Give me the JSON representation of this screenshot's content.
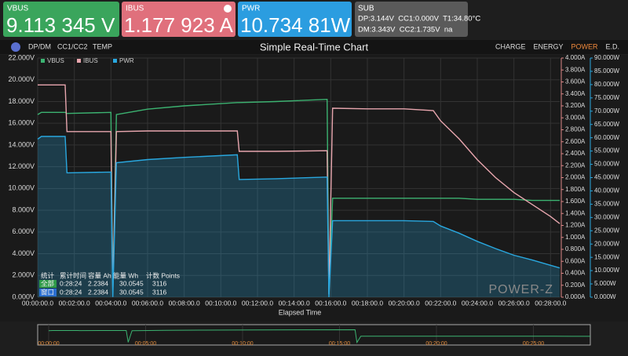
{
  "header": {
    "panels": [
      {
        "label": "VBUS",
        "value": "9.113 345 V"
      },
      {
        "label": "IBUS",
        "value": "1.177 923 A"
      },
      {
        "label": "PWR",
        "value": "10.734 81W"
      }
    ],
    "sub": {
      "label": "SUB",
      "lines": [
        "DP:3.144V  CC1:0.000V  T1:34.80°C",
        "DM:3.343V  CC2:1.735V  na"
      ]
    }
  },
  "toolbar": {
    "left_tabs": [
      "DP/DM",
      "CC1/CC2",
      "TEMP"
    ],
    "right_tabs": [
      "CHARGE",
      "ENERGY",
      "POWER",
      "E.D."
    ],
    "active_tab": "POWER"
  },
  "stats": {
    "headers": [
      "统计",
      "累计时间",
      "容量 Ah",
      "能量 Wh",
      "计数 Points"
    ],
    "rows": [
      [
        "全部",
        "0:28:24",
        "2.2384",
        "30.0545",
        "3116"
      ],
      [
        "窗口",
        "0:28:24",
        "2.2384",
        "30.0545",
        "3116"
      ]
    ]
  },
  "watermark": "POWER-Z",
  "chart_data": {
    "type": "line",
    "title": "Simple Real-Time Chart",
    "xlabel": "Elapsed Time",
    "x": [
      0,
      0.2,
      1.5,
      1.6,
      4.0,
      4.1,
      4.3,
      6,
      8,
      10.9,
      11.0,
      13,
      15.8,
      15.9,
      16.1,
      18,
      20,
      21.6,
      22,
      23,
      24,
      25,
      26,
      27,
      28,
      28.5
    ],
    "series": [
      {
        "name": "VBUS",
        "color": "#3cb371",
        "axis": "y",
        "values": [
          16.8,
          17.0,
          17.0,
          16.9,
          17.0,
          0.5,
          16.8,
          17.3,
          17.6,
          17.9,
          17.9,
          18.0,
          18.2,
          0.3,
          9.1,
          9.1,
          9.1,
          9.1,
          9.1,
          9.1,
          9.0,
          9.0,
          9.0,
          8.9,
          8.9,
          8.9
        ]
      },
      {
        "name": "IBUS",
        "color": "#e8a6ae",
        "axis": "y2",
        "values": [
          3.55,
          3.55,
          3.55,
          2.77,
          2.77,
          0.1,
          2.77,
          2.78,
          2.78,
          2.78,
          2.44,
          2.44,
          2.45,
          0.05,
          3.16,
          3.15,
          3.15,
          3.12,
          2.95,
          2.65,
          2.3,
          2.0,
          1.75,
          1.55,
          1.35,
          1.23
        ]
      },
      {
        "name": "PWR",
        "color": "#29a8e0",
        "axis": "y3",
        "values": [
          59.5,
          60.5,
          60.5,
          46.8,
          47.1,
          0.1,
          50.6,
          51.8,
          52.6,
          53.6,
          44.3,
          44.6,
          45.2,
          0.0,
          28.8,
          28.8,
          28.8,
          28.5,
          26.8,
          24.1,
          21.0,
          18.3,
          15.8,
          14.0,
          12.0,
          11.0
        ]
      }
    ],
    "xlim": [
      0,
      28.5
    ],
    "xticks": [
      {
        "value": 0,
        "label": "00:00:00.0"
      },
      {
        "value": 2,
        "label": "00:02:00.0"
      },
      {
        "value": 4,
        "label": "00:04:00.0"
      },
      {
        "value": 6,
        "label": "00:06:00.0"
      },
      {
        "value": 8,
        "label": "00:08:00.0"
      },
      {
        "value": 10,
        "label": "00:10:00.0"
      },
      {
        "value": 12,
        "label": "00:12:00.0"
      },
      {
        "value": 14,
        "label": "00:14:00.0"
      },
      {
        "value": 16,
        "label": "00:16:00.0"
      },
      {
        "value": 18,
        "label": "00:18:00.0"
      },
      {
        "value": 20,
        "label": "00:20:00.0"
      },
      {
        "value": 22,
        "label": "00:22:00.0"
      },
      {
        "value": 24,
        "label": "00:24:00.0"
      },
      {
        "value": 26,
        "label": "00:26:00.0"
      },
      {
        "value": 28,
        "label": "00:28:00.0"
      }
    ],
    "ylim": [
      0,
      22
    ],
    "yticks": [
      {
        "value": 0,
        "label": "0.000V"
      },
      {
        "value": 2,
        "label": "2.000V"
      },
      {
        "value": 4,
        "label": "4.000V"
      },
      {
        "value": 6,
        "label": "6.000V"
      },
      {
        "value": 8,
        "label": "8.000V"
      },
      {
        "value": 10,
        "label": "10.000V"
      },
      {
        "value": 12,
        "label": "12.000V"
      },
      {
        "value": 14,
        "label": "14.000V"
      },
      {
        "value": 16,
        "label": "16.000V"
      },
      {
        "value": 18,
        "label": "18.000V"
      },
      {
        "value": 20,
        "label": "20.000V"
      },
      {
        "value": 22,
        "label": "22.000V"
      }
    ],
    "y2lim": [
      0,
      4
    ],
    "y2ticks": [
      {
        "value": 0,
        "label": "0.000A"
      },
      {
        "value": 0.2,
        "label": "0.200A"
      },
      {
        "value": 0.4,
        "label": "0.400A"
      },
      {
        "value": 0.6,
        "label": "0.600A"
      },
      {
        "value": 0.8,
        "label": "0.800A"
      },
      {
        "value": 1,
        "label": "1.000A"
      },
      {
        "value": 1.2,
        "label": "1.200A"
      },
      {
        "value": 1.4,
        "label": "1.400A"
      },
      {
        "value": 1.6,
        "label": "1.600A"
      },
      {
        "value": 1.8,
        "label": "1.800A"
      },
      {
        "value": 2,
        "label": "2.000A"
      },
      {
        "value": 2.2,
        "label": "2.200A"
      },
      {
        "value": 2.4,
        "label": "2.400A"
      },
      {
        "value": 2.6,
        "label": "2.600A"
      },
      {
        "value": 2.8,
        "label": "2.800A"
      },
      {
        "value": 3,
        "label": "3.000A"
      },
      {
        "value": 3.2,
        "label": "3.200A"
      },
      {
        "value": 3.4,
        "label": "3.400A"
      },
      {
        "value": 3.6,
        "label": "3.600A"
      },
      {
        "value": 3.8,
        "label": "3.800A"
      },
      {
        "value": 4,
        "label": "4.000A"
      }
    ],
    "y3lim": [
      0,
      90
    ],
    "y3ticks": [
      {
        "value": 0,
        "label": "0.000W"
      },
      {
        "value": 5,
        "label": "5.000W"
      },
      {
        "value": 10,
        "label": "10.000W"
      },
      {
        "value": 15,
        "label": "15.000W"
      },
      {
        "value": 20,
        "label": "20.000W"
      },
      {
        "value": 25,
        "label": "25.000W"
      },
      {
        "value": 30,
        "label": "30.000W"
      },
      {
        "value": 35,
        "label": "35.000W"
      },
      {
        "value": 40,
        "label": "40.000W"
      },
      {
        "value": 45,
        "label": "45.000W"
      },
      {
        "value": 50,
        "label": "50.000W"
      },
      {
        "value": 55,
        "label": "55.000W"
      },
      {
        "value": 60,
        "label": "60.000W"
      },
      {
        "value": 65,
        "label": "65.000W"
      },
      {
        "value": 70,
        "label": "70.000W"
      },
      {
        "value": 75,
        "label": "75.000W"
      },
      {
        "value": 80,
        "label": "80.000W"
      },
      {
        "value": 85,
        "label": "85.000W"
      },
      {
        "value": 90,
        "label": "90.000W"
      }
    ],
    "overview_ticks": [
      {
        "value": 0,
        "label": "00:00:00"
      },
      {
        "value": 5,
        "label": "00:05:00"
      },
      {
        "value": 10,
        "label": "00:10:00"
      },
      {
        "value": 15,
        "label": "00:15:00"
      },
      {
        "value": 20,
        "label": "00:20:00"
      },
      {
        "value": 25,
        "label": "00:25:00"
      }
    ],
    "grid": true
  }
}
